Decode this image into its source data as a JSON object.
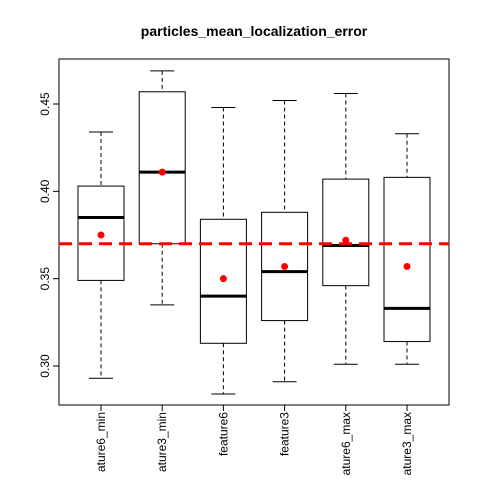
{
  "chart_data": {
    "type": "box",
    "title": "particles_mean_localization_error",
    "xlabel": "",
    "ylabel": "",
    "categories": [
      "ature6_min",
      "ature3_min",
      "feature6",
      "feature3",
      "ature6_max",
      "ature3_max"
    ],
    "yticks": [
      0.3,
      0.35,
      0.4,
      0.45
    ],
    "ylim": [
      0.279,
      0.474
    ],
    "boxes": [
      {
        "min": 0.293,
        "q1": 0.349,
        "median": 0.385,
        "q3": 0.403,
        "max": 0.434,
        "mean": 0.375
      },
      {
        "min": 0.335,
        "q1": 0.37,
        "median": 0.411,
        "q3": 0.457,
        "max": 0.469,
        "mean": 0.411
      },
      {
        "min": 0.284,
        "q1": 0.313,
        "median": 0.34,
        "q3": 0.384,
        "max": 0.448,
        "mean": 0.35
      },
      {
        "min": 0.291,
        "q1": 0.326,
        "median": 0.354,
        "q3": 0.388,
        "max": 0.452,
        "mean": 0.357
      },
      {
        "min": 0.301,
        "q1": 0.346,
        "median": 0.369,
        "q3": 0.407,
        "max": 0.456,
        "mean": 0.372
      },
      {
        "min": 0.301,
        "q1": 0.314,
        "median": 0.333,
        "q3": 0.408,
        "max": 0.433,
        "mean": 0.357
      }
    ],
    "reference_line": {
      "y": 0.37,
      "color": "#ff0000",
      "style": "dashed"
    },
    "mean_marker_color": "#ff0000",
    "grid": false,
    "legend": "none"
  }
}
